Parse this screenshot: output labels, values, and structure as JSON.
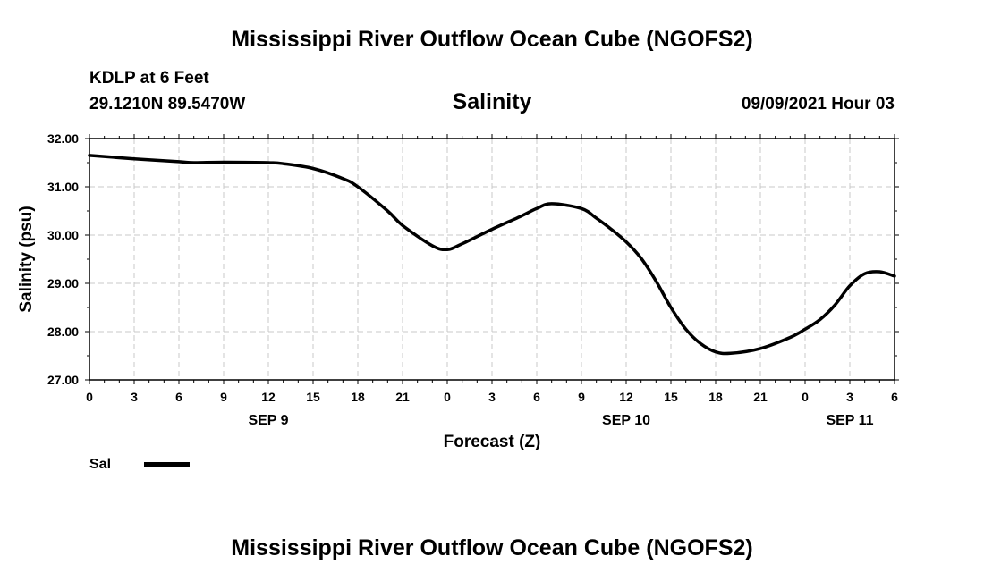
{
  "header": {
    "title": "Mississippi River Outflow Ocean Cube (NGOFS2)",
    "station": "KDLP at 6 Feet",
    "coords": "29.1210N  89.5470W",
    "parameter": "Salinity",
    "timestamp": "09/09/2021 Hour 03"
  },
  "footer": {
    "title": "Mississippi River Outflow Ocean Cube (NGOFS2)"
  },
  "legend": {
    "label": "Sal",
    "color": "#000000"
  },
  "chart_data": {
    "type": "line",
    "title": "Salinity",
    "xlabel": "Forecast (Z)",
    "ylabel": "Salinity (psu)",
    "ylim": [
      27.0,
      32.0
    ],
    "yticks": [
      "27.00",
      "28.00",
      "29.00",
      "30.00",
      "31.00",
      "32.00"
    ],
    "xlim": [
      0,
      54
    ],
    "xtick_labels": [
      "0",
      "3",
      "6",
      "9",
      "12",
      "15",
      "18",
      "21",
      "0",
      "3",
      "6",
      "9",
      "12",
      "15",
      "18",
      "21",
      "0",
      "3",
      "6"
    ],
    "date_labels": [
      {
        "label": "SEP 9",
        "hour": 12
      },
      {
        "label": "SEP 10",
        "hour": 36
      },
      {
        "label": "SEP 11",
        "hour": 51
      }
    ],
    "grid": true,
    "series": [
      {
        "name": "Sal",
        "color": "#000000",
        "x": [
          0,
          3,
          6,
          7,
          9,
          12,
          13,
          15,
          17,
          18,
          20,
          21,
          23,
          24,
          25,
          27,
          29,
          30,
          31,
          33,
          34,
          35,
          36,
          37,
          38,
          39,
          40,
          41,
          42,
          43,
          45,
          47,
          48,
          49,
          50,
          51,
          52,
          53,
          54
        ],
        "y": [
          31.65,
          31.58,
          31.52,
          31.5,
          31.51,
          31.5,
          31.48,
          31.38,
          31.17,
          31.0,
          30.5,
          30.2,
          29.78,
          29.7,
          29.82,
          30.12,
          30.4,
          30.55,
          30.65,
          30.55,
          30.35,
          30.12,
          29.86,
          29.52,
          29.05,
          28.5,
          28.05,
          27.75,
          27.58,
          27.55,
          27.65,
          27.88,
          28.05,
          28.25,
          28.55,
          28.95,
          29.2,
          29.24,
          29.15
        ]
      }
    ]
  }
}
